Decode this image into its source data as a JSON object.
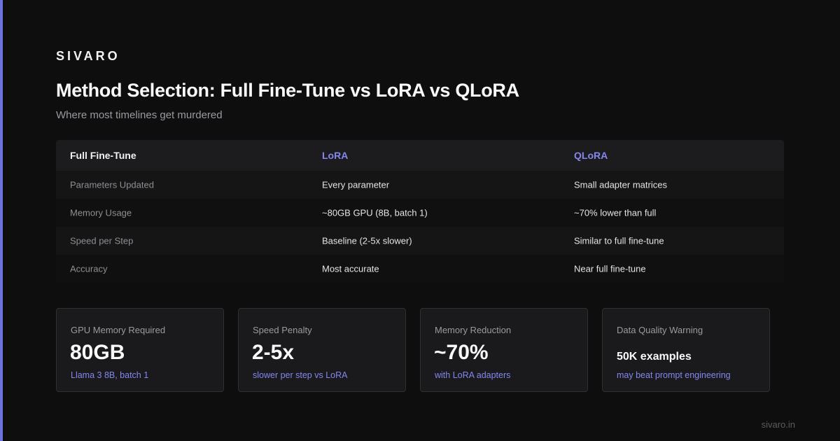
{
  "header": {
    "brand": "SIVARO",
    "title": "Method Selection: Full Fine-Tune vs LoRA vs QLoRA",
    "subtitle": "Where most timelines get murdered"
  },
  "table": {
    "columns": [
      "Full Fine-Tune",
      "LoRA",
      "QLoRA"
    ],
    "rows": [
      [
        "Parameters Updated",
        "Every parameter",
        "Small adapter matrices"
      ],
      [
        "Memory Usage",
        "~80GB GPU (8B, batch 1)",
        "~70% lower than full"
      ],
      [
        "Speed per Step",
        "Baseline (2-5x slower)",
        "Similar to full fine-tune"
      ],
      [
        "Accuracy",
        "Most accurate",
        "Near full fine-tune"
      ]
    ]
  },
  "stats": [
    {
      "label": "GPU Memory Required",
      "value": "80GB",
      "note": "Llama 3 8B, batch 1"
    },
    {
      "label": "Speed Penalty",
      "value": "2-5x",
      "note": "slower per step vs LoRA"
    },
    {
      "label": "Memory Reduction",
      "value": "~70%",
      "note": "with LoRA adapters"
    },
    {
      "label": "Data Quality Warning",
      "value": "50K examples",
      "note": "may beat prompt engineering"
    }
  ],
  "footer": {
    "site": "sivaro.in"
  }
}
